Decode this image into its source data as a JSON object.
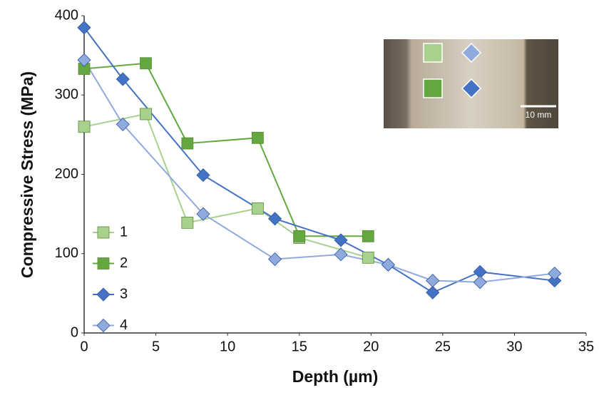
{
  "chart_data": {
    "type": "line",
    "x_label": "Depth (µm)",
    "y_label": "Compressive Stress (MPa)",
    "xlim": [
      0,
      35
    ],
    "xticks": [
      0,
      5,
      10,
      15,
      20,
      25,
      30,
      35
    ],
    "ylim": [
      0,
      400
    ],
    "yticks": [
      0,
      100,
      200,
      300,
      400
    ],
    "grid": false,
    "legend": "lower left",
    "inset_scale_label": "10 mm",
    "series": [
      {
        "name": "1",
        "color": "#a9d18e",
        "marker": "square",
        "x": [
          0,
          4.3,
          7.2,
          12.1,
          15,
          19.8
        ],
        "values": [
          260,
          276,
          139,
          157,
          120,
          95
        ]
      },
      {
        "name": "2",
        "color": "#62a83f",
        "marker": "square",
        "x": [
          0,
          4.3,
          7.2,
          12.1,
          15,
          19.8
        ],
        "values": [
          333,
          340,
          239,
          246,
          122,
          122
        ]
      },
      {
        "name": "3",
        "color": "#4472c4",
        "marker": "diamond",
        "x": [
          0,
          2.7,
          8.3,
          13.3,
          17.9,
          21.2,
          24.3,
          27.6,
          32.8
        ],
        "values": [
          385,
          320,
          199,
          144,
          117,
          86,
          51,
          77,
          66
        ]
      },
      {
        "name": "4",
        "color": "#8faadc",
        "marker": "diamond",
        "x": [
          0,
          2.7,
          8.3,
          13.3,
          17.9,
          21.2,
          24.3,
          27.6,
          32.8
        ],
        "values": [
          344,
          263,
          150,
          93,
          99,
          86,
          66,
          64,
          75
        ]
      }
    ]
  }
}
